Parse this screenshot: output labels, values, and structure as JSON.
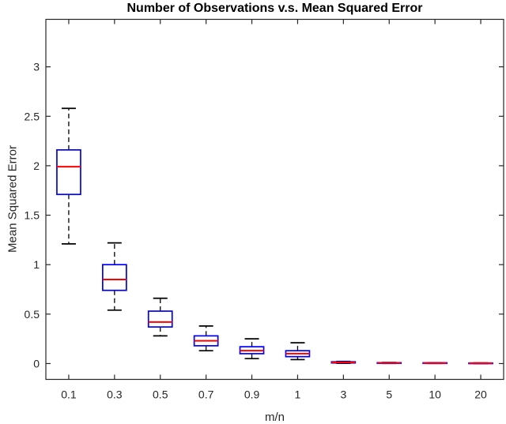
{
  "chart_data": {
    "type": "boxplot",
    "title": "Number of Observations v.s. Mean Squared Error",
    "xlabel": "m/n",
    "ylabel": "Mean Squared Error",
    "categories": [
      "0.1",
      "0.3",
      "0.5",
      "0.7",
      "0.9",
      "1",
      "3",
      "5",
      "10",
      "20"
    ],
    "yticks": [
      0,
      0.5,
      1,
      1.5,
      2,
      2.5,
      3
    ],
    "ytick_labels": [
      "0",
      "0.5",
      "1",
      "1.5",
      "2",
      "2.5",
      "3"
    ],
    "ylim": [
      -0.16,
      3.48
    ],
    "grid": false,
    "legend": null,
    "colors": {
      "box": "#0000ff",
      "median": "#ff0000",
      "whisker": "#000000",
      "axis": "#262626",
      "tick_label": "#262626",
      "title": "#000000",
      "background": "#ffffff"
    },
    "boxes": [
      {
        "category": "0.1",
        "whisker_low": 1.21,
        "q1": 1.71,
        "median": 1.99,
        "q3": 2.16,
        "whisker_high": 2.58
      },
      {
        "category": "0.3",
        "whisker_low": 0.54,
        "q1": 0.74,
        "median": 0.85,
        "q3": 1.0,
        "whisker_high": 1.22
      },
      {
        "category": "0.5",
        "whisker_low": 0.28,
        "q1": 0.37,
        "median": 0.42,
        "q3": 0.53,
        "whisker_high": 0.66
      },
      {
        "category": "0.7",
        "whisker_low": 0.13,
        "q1": 0.18,
        "median": 0.23,
        "q3": 0.28,
        "whisker_high": 0.38
      },
      {
        "category": "0.9",
        "whisker_low": 0.05,
        "q1": 0.1,
        "median": 0.13,
        "q3": 0.17,
        "whisker_high": 0.25
      },
      {
        "category": "1",
        "whisker_low": 0.04,
        "q1": 0.07,
        "median": 0.1,
        "q3": 0.13,
        "whisker_high": 0.21
      },
      {
        "category": "3",
        "whisker_low": 0.002,
        "q1": 0.006,
        "median": 0.012,
        "q3": 0.018,
        "whisker_high": 0.022
      },
      {
        "category": "5",
        "whisker_low": 0.001,
        "q1": 0.003,
        "median": 0.006,
        "q3": 0.009,
        "whisker_high": 0.011
      },
      {
        "category": "10",
        "whisker_low": 0.001,
        "q1": 0.002,
        "median": 0.005,
        "q3": 0.008,
        "whisker_high": 0.009
      },
      {
        "category": "20",
        "whisker_low": 0.0,
        "q1": 0.001,
        "median": 0.004,
        "q3": 0.006,
        "whisker_high": 0.007
      }
    ]
  }
}
